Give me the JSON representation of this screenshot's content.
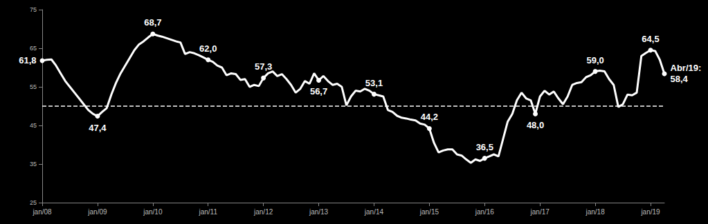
{
  "chart_data": {
    "type": "line",
    "color": "#ffffff",
    "grid": false,
    "ylim": [
      25,
      75
    ],
    "yticks": [
      25,
      35,
      45,
      55,
      65,
      75
    ],
    "reference_line": {
      "value": 50,
      "line_style": "dashed"
    },
    "categories": [
      "jan/08",
      null,
      null,
      null,
      null,
      null,
      null,
      null,
      null,
      null,
      null,
      null,
      "jan/09",
      null,
      null,
      null,
      null,
      null,
      null,
      null,
      null,
      null,
      null,
      null,
      "jan/10",
      null,
      null,
      null,
      null,
      null,
      null,
      null,
      null,
      null,
      null,
      null,
      "jan/11",
      null,
      null,
      null,
      null,
      null,
      null,
      null,
      null,
      null,
      null,
      null,
      "jan/12",
      null,
      null,
      null,
      null,
      null,
      null,
      null,
      null,
      null,
      null,
      null,
      "jan/13",
      null,
      null,
      null,
      null,
      null,
      null,
      null,
      null,
      null,
      null,
      null,
      "jan/14",
      null,
      null,
      null,
      null,
      null,
      null,
      null,
      null,
      null,
      null,
      null,
      "jan/15",
      null,
      null,
      null,
      null,
      null,
      null,
      null,
      null,
      null,
      null,
      null,
      "jan/16",
      null,
      null,
      null,
      null,
      null,
      null,
      null,
      null,
      null,
      null,
      null,
      "jan/17",
      null,
      null,
      null,
      null,
      null,
      null,
      null,
      null,
      null,
      null,
      null,
      "jan/18",
      null,
      null,
      null,
      null,
      null,
      null,
      null,
      null,
      null,
      null,
      null,
      "jan/19",
      null,
      null,
      null
    ],
    "values": [
      61.8,
      62.0,
      62.1,
      60.5,
      58.5,
      56.5,
      55.0,
      53.5,
      52.0,
      50.5,
      49.0,
      48.0,
      47.4,
      48.5,
      49.5,
      53.0,
      56.0,
      58.5,
      60.5,
      62.5,
      64.5,
      66.0,
      66.8,
      67.8,
      68.7,
      68.3,
      68.0,
      67.6,
      67.2,
      66.8,
      66.5,
      63.5,
      64.0,
      63.7,
      63.2,
      62.6,
      62.0,
      61.5,
      60.5,
      60.0,
      58.0,
      58.5,
      58.3,
      56.8,
      57.0,
      55.0,
      55.5,
      55.2,
      57.3,
      58.5,
      59.0,
      57.8,
      58.3,
      57.0,
      55.5,
      53.5,
      54.5,
      56.5,
      55.8,
      58.5,
      56.7,
      57.8,
      56.5,
      55.5,
      55.8,
      55.0,
      50.2,
      52.5,
      54.0,
      53.8,
      54.5,
      54.0,
      53.1,
      52.8,
      52.5,
      49.0,
      48.5,
      47.5,
      47.0,
      46.8,
      46.5,
      46.3,
      45.5,
      45.2,
      44.2,
      40.5,
      38.0,
      38.5,
      38.8,
      38.8,
      37.5,
      37.2,
      36.2,
      35.3,
      36.2,
      35.8,
      36.5,
      37.0,
      37.5,
      37.0,
      41.5,
      46.0,
      48.0,
      51.5,
      53.5,
      52.0,
      51.5,
      48.0,
      52.5,
      54.0,
      53.0,
      53.8,
      52.0,
      50.5,
      52.5,
      55.5,
      56.0,
      56.2,
      57.5,
      58.0,
      59.0,
      59.2,
      59.0,
      57.0,
      55.5,
      49.8,
      50.5,
      53.0,
      52.8,
      53.5,
      63.0,
      63.8,
      64.5,
      64.3,
      62.0,
      58.4
    ],
    "value_labels": [
      "61,8",
      null,
      null,
      null,
      null,
      null,
      null,
      null,
      null,
      null,
      null,
      null,
      "47,4",
      null,
      null,
      null,
      null,
      null,
      null,
      null,
      null,
      null,
      null,
      null,
      "68,7",
      null,
      null,
      null,
      null,
      null,
      null,
      null,
      null,
      null,
      null,
      null,
      "62,0",
      null,
      null,
      null,
      null,
      null,
      null,
      null,
      null,
      null,
      null,
      null,
      "57,3",
      null,
      null,
      null,
      null,
      null,
      null,
      null,
      null,
      null,
      null,
      null,
      "56,7",
      null,
      null,
      null,
      null,
      null,
      null,
      null,
      null,
      null,
      null,
      null,
      "53,1",
      null,
      null,
      null,
      null,
      null,
      null,
      null,
      null,
      null,
      null,
      null,
      "44,2",
      null,
      null,
      null,
      null,
      null,
      null,
      null,
      null,
      null,
      null,
      null,
      "36,5",
      null,
      null,
      null,
      null,
      null,
      null,
      null,
      null,
      null,
      null,
      "48,0",
      null,
      null,
      null,
      null,
      null,
      null,
      null,
      null,
      null,
      null,
      null,
      null,
      "59,0",
      null,
      null,
      null,
      null,
      null,
      null,
      null,
      null,
      null,
      null,
      null,
      "64,5",
      null,
      null,
      "Abr/19:\n58,4"
    ]
  }
}
